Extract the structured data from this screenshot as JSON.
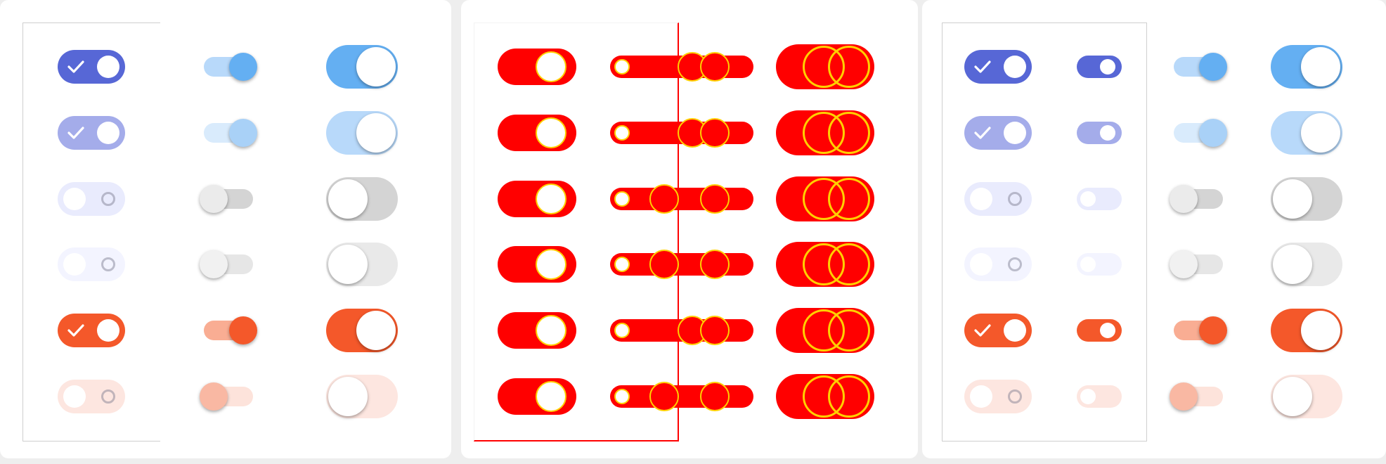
{
  "title": "",
  "colors": {
    "indigo": "#5767d6",
    "indigo_disabled": "#a4acea",
    "blue_knob": "#64aff2",
    "blue_track": "#b8d9fa",
    "blue_knob_disabled": "#a9d1f7",
    "blue_track_disabled": "#d9ebfc",
    "orange": "#f4582a",
    "orange_track": "#f9ad93",
    "orange_disabled": "#fde6e0",
    "gray_track": "#d4d4d4",
    "gray_knob": "#ebebeb",
    "pale_lavender": "#eef0ff",
    "diff_red": "#ff0000",
    "diff_yellow": "#ffd000",
    "frame_gray": "#cfcfcf"
  },
  "toggle_states": [
    {
      "state": "on",
      "enabled": true,
      "theme": "indigo"
    },
    {
      "state": "on",
      "enabled": false,
      "theme": "indigo"
    },
    {
      "state": "off",
      "enabled": true,
      "theme": "neutral"
    },
    {
      "state": "off",
      "enabled": false,
      "theme": "neutral"
    },
    {
      "state": "on",
      "enabled": true,
      "theme": "orange"
    },
    {
      "state": "off",
      "enabled": false,
      "theme": "orange"
    }
  ],
  "panels": [
    {
      "name": "reference",
      "columns": [
        "checkmark-toggle",
        "material-slide-toggle",
        "ios-toggle"
      ]
    },
    {
      "name": "diff-overlay",
      "columns": [
        "checkmark-toggle",
        "slide-toggles",
        "ios-toggle"
      ]
    },
    {
      "name": "candidate",
      "columns": [
        "checkmark-toggle",
        "pill-toggle",
        "material-slide-toggle",
        "ios-toggle"
      ]
    }
  ]
}
